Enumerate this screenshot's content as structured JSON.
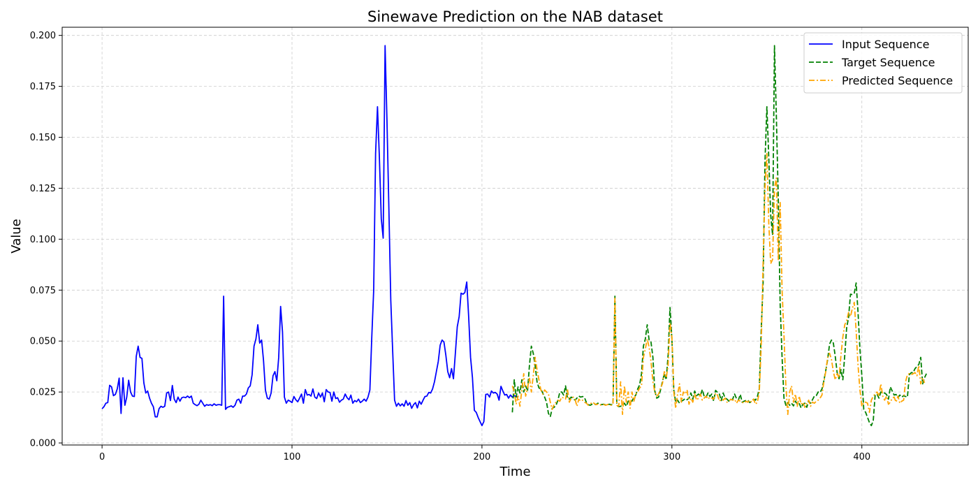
{
  "chart_data": {
    "type": "line",
    "title": "Sinewave Prediction on the NAB dataset",
    "xlabel": "Time",
    "ylabel": "Value",
    "xlim": [
      -21,
      456
    ],
    "ylim": [
      -0.001,
      0.204
    ],
    "xticks": [
      0,
      100,
      200,
      300,
      400
    ],
    "xtick_labels": [
      "0",
      "100",
      "200",
      "300",
      "400"
    ],
    "yticks": [
      0.0,
      0.025,
      0.05,
      0.075,
      0.1,
      0.125,
      0.15,
      0.175,
      0.2
    ],
    "ytick_labels": [
      "0.000",
      "0.025",
      "0.050",
      "0.075",
      "0.100",
      "0.125",
      "0.150",
      "0.175",
      "0.200"
    ],
    "grid": true,
    "legend_position": "top-right",
    "series": [
      {
        "name": "Input Sequence",
        "color": "#0000ff",
        "style": "solid",
        "x_start": 0,
        "values": [
          0.0168,
          0.0178,
          0.0195,
          0.0198,
          0.0283,
          0.0275,
          0.0232,
          0.0238,
          0.0265,
          0.0318,
          0.0145,
          0.032,
          0.0185,
          0.0225,
          0.0308,
          0.025,
          0.023,
          0.0228,
          0.0425,
          0.0475,
          0.042,
          0.0415,
          0.0295,
          0.0245,
          0.0255,
          0.022,
          0.0195,
          0.0178,
          0.0128,
          0.0128,
          0.0168,
          0.018,
          0.0175,
          0.018,
          0.0245,
          0.025,
          0.0208,
          0.0282,
          0.0215,
          0.0198,
          0.0225,
          0.0205,
          0.0222,
          0.0225,
          0.0222,
          0.023,
          0.0222,
          0.023,
          0.0195,
          0.0188,
          0.0183,
          0.019,
          0.021,
          0.0195,
          0.018,
          0.0188,
          0.0185,
          0.0188,
          0.0183,
          0.0192,
          0.0185,
          0.0188,
          0.0188,
          0.0185,
          0.072,
          0.0165,
          0.0175,
          0.0178,
          0.0182,
          0.0175,
          0.0185,
          0.021,
          0.0215,
          0.0195,
          0.023,
          0.023,
          0.024,
          0.027,
          0.028,
          0.0335,
          0.0475,
          0.051,
          0.058,
          0.049,
          0.0505,
          0.0405,
          0.026,
          0.022,
          0.0215,
          0.0245,
          0.033,
          0.035,
          0.0305,
          0.042,
          0.067,
          0.0545,
          0.0225,
          0.0195,
          0.021,
          0.0205,
          0.0198,
          0.0228,
          0.0212,
          0.0202,
          0.022,
          0.024,
          0.0195,
          0.0262,
          0.0235,
          0.0238,
          0.023,
          0.0265,
          0.0225,
          0.0218,
          0.0245,
          0.0225,
          0.0245,
          0.0202,
          0.0262,
          0.025,
          0.0248,
          0.0205,
          0.025,
          0.0218,
          0.0222,
          0.02,
          0.021,
          0.0215,
          0.024,
          0.0222,
          0.0212,
          0.0235,
          0.0195,
          0.0208,
          0.0202,
          0.0215,
          0.0198,
          0.0205,
          0.0215,
          0.0205,
          0.0225,
          0.026,
          0.052,
          0.075,
          0.142,
          0.165,
          0.14,
          0.11,
          0.1005,
          0.195,
          0.158,
          0.115,
          0.07,
          0.045,
          0.021,
          0.018,
          0.0195,
          0.0182,
          0.0192,
          0.018,
          0.0208,
          0.0185,
          0.0198,
          0.017,
          0.0188,
          0.0198,
          0.0172,
          0.0205,
          0.019,
          0.021,
          0.0228,
          0.023,
          0.0248,
          0.0245,
          0.0265,
          0.03,
          0.035,
          0.04,
          0.048,
          0.0505,
          0.0495,
          0.043,
          0.035,
          0.032,
          0.0365,
          0.0315,
          0.044,
          0.057,
          0.062,
          0.0735,
          0.073,
          0.0738,
          0.079,
          0.062,
          0.042,
          0.032,
          0.016,
          0.015,
          0.0125,
          0.0105,
          0.0085,
          0.0105,
          0.0238,
          0.024,
          0.0225,
          0.0255,
          0.0245,
          0.0248,
          0.024,
          0.021,
          0.0278,
          0.0255,
          0.0235,
          0.0238,
          0.022,
          0.0235,
          0.0225,
          0.0232,
          0.0228,
          0.0225
        ]
      },
      {
        "name": "Target Sequence",
        "color": "#008000",
        "style": "dashed",
        "x_start": 216,
        "values": [
          0.015,
          0.031,
          0.0225,
          0.0275,
          0.0245,
          0.031,
          0.025,
          0.028,
          0.0255,
          0.038,
          0.0475,
          0.044,
          0.038,
          0.03,
          0.027,
          0.0265,
          0.0245,
          0.0225,
          0.02,
          0.0145,
          0.013,
          0.017,
          0.0175,
          0.0185,
          0.021,
          0.025,
          0.025,
          0.0235,
          0.028,
          0.022,
          0.0215,
          0.0225,
          0.0218,
          0.021,
          0.022,
          0.023,
          0.0225,
          0.0228,
          0.0222,
          0.0198,
          0.0188,
          0.0185,
          0.019,
          0.0192,
          0.0188,
          0.0195,
          0.019,
          0.0188,
          0.019,
          0.0188,
          0.0188,
          0.019,
          0.0188,
          0.0188,
          0.072,
          0.0185,
          0.0178,
          0.018,
          0.0185,
          0.0195,
          0.018,
          0.0205,
          0.021,
          0.0205,
          0.0225,
          0.0235,
          0.0265,
          0.0285,
          0.034,
          0.0475,
          0.051,
          0.058,
          0.0505,
          0.0495,
          0.042,
          0.0255,
          0.022,
          0.0225,
          0.026,
          0.03,
          0.034,
          0.031,
          0.043,
          0.0665,
          0.051,
          0.026,
          0.02,
          0.021,
          0.0195,
          0.0205,
          0.021,
          0.0218,
          0.0212,
          0.022,
          0.0245,
          0.0215,
          0.0255,
          0.0232,
          0.024,
          0.0232,
          0.0262,
          0.0228,
          0.0225,
          0.0245,
          0.0228,
          0.024,
          0.0205,
          0.0258,
          0.0248,
          0.024,
          0.0208,
          0.0245,
          0.022,
          0.0215,
          0.0205,
          0.021,
          0.0215,
          0.024,
          0.0218,
          0.021,
          0.0238,
          0.02,
          0.0205,
          0.0208,
          0.021,
          0.0198,
          0.0205,
          0.0215,
          0.021,
          0.0228,
          0.0265,
          0.055,
          0.078,
          0.138,
          0.165,
          0.14,
          0.112,
          0.102,
          0.195,
          0.16,
          0.12,
          0.068,
          0.042,
          0.022,
          0.0185,
          0.0198,
          0.0185,
          0.0195,
          0.0182,
          0.0205,
          0.019,
          0.0195,
          0.0172,
          0.019,
          0.0195,
          0.0175,
          0.0205,
          0.0195,
          0.0212,
          0.023,
          0.0232,
          0.025,
          0.0248,
          0.0265,
          0.0305,
          0.0355,
          0.041,
          0.0485,
          0.0505,
          0.049,
          0.0425,
          0.0345,
          0.0315,
          0.036,
          0.031,
          0.043,
          0.0565,
          0.0615,
          0.073,
          0.0728,
          0.0735,
          0.0785,
          0.064,
          0.046,
          0.033,
          0.0165,
          0.015,
          0.0125,
          0.01,
          0.0085,
          0.011,
          0.0235,
          0.024,
          0.022,
          0.025,
          0.0245,
          0.0245,
          0.0238,
          0.0215,
          0.0275,
          0.0255,
          0.0235,
          0.0238,
          0.0222,
          0.0235,
          0.0225,
          0.0232,
          0.0228,
          0.0225,
          0.0335,
          0.0345,
          0.0345,
          0.0365,
          0.0375,
          0.0385,
          0.042,
          0.029,
          0.032,
          0.034
        ]
      },
      {
        "name": "Predicted Sequence",
        "color": "#ffa500",
        "style": "dashdot",
        "x_start": 216,
        "values": [
          0.028,
          0.025,
          0.019,
          0.023,
          0.018,
          0.026,
          0.034,
          0.023,
          0.027,
          0.032,
          0.025,
          0.033,
          0.042,
          0.036,
          0.031,
          0.026,
          0.024,
          0.026,
          0.025,
          0.024,
          0.02,
          0.0165,
          0.019,
          0.02,
          0.021,
          0.0205,
          0.0225,
          0.022,
          0.0215,
          0.0265,
          0.02,
          0.022,
          0.0225,
          0.0215,
          0.018,
          0.0215,
          0.0205,
          0.021,
          0.02,
          0.0195,
          0.0185,
          0.019,
          0.02,
          0.0195,
          0.0188,
          0.019,
          0.0185,
          0.0188,
          0.019,
          0.0185,
          0.0188,
          0.019,
          0.0185,
          0.019,
          0.071,
          0.0185,
          0.018,
          0.03,
          0.014,
          0.028,
          0.02,
          0.025,
          0.017,
          0.025,
          0.0205,
          0.024,
          0.025,
          0.027,
          0.028,
          0.042,
          0.046,
          0.051,
          0.047,
          0.04,
          0.03,
          0.025,
          0.023,
          0.024,
          0.027,
          0.029,
          0.035,
          0.032,
          0.038,
          0.059,
          0.052,
          0.025,
          0.017,
          0.024,
          0.029,
          0.02,
          0.025,
          0.024,
          0.026,
          0.019,
          0.022,
          0.02,
          0.024,
          0.021,
          0.022,
          0.024,
          0.021,
          0.022,
          0.023,
          0.0215,
          0.0225,
          0.022,
          0.0215,
          0.0245,
          0.0235,
          0.0205,
          0.0215,
          0.021,
          0.022,
          0.02,
          0.0205,
          0.0215,
          0.021,
          0.0215,
          0.0195,
          0.021,
          0.0205,
          0.02,
          0.0195,
          0.0205,
          0.02,
          0.021,
          0.02,
          0.0215,
          0.019,
          0.02,
          0.025,
          0.047,
          0.088,
          0.125,
          0.142,
          0.108,
          0.088,
          0.09,
          0.125,
          0.13,
          0.09,
          0.118,
          0.075,
          0.053,
          0.028,
          0.014,
          0.025,
          0.028,
          0.02,
          0.024,
          0.018,
          0.023,
          0.019,
          0.02,
          0.0175,
          0.0195,
          0.021,
          0.018,
          0.02,
          0.0195,
          0.0205,
          0.021,
          0.022,
          0.0235,
          0.03,
          0.035,
          0.042,
          0.044,
          0.041,
          0.035,
          0.031,
          0.034,
          0.032,
          0.043,
          0.052,
          0.058,
          0.06,
          0.064,
          0.062,
          0.066,
          0.069,
          0.055,
          0.038,
          0.026,
          0.018,
          0.02,
          0.02,
          0.0195,
          0.015,
          0.021,
          0.023,
          0.024,
          0.025,
          0.023,
          0.029,
          0.023,
          0.021,
          0.023,
          0.019,
          0.02,
          0.022,
          0.0225,
          0.02,
          0.023,
          0.0195,
          0.0205,
          0.021,
          0.03,
          0.0335,
          0.034,
          0.0335,
          0.034,
          0.0345,
          0.033,
          0.038,
          0.029,
          0.032,
          0.0295
        ]
      }
    ]
  }
}
